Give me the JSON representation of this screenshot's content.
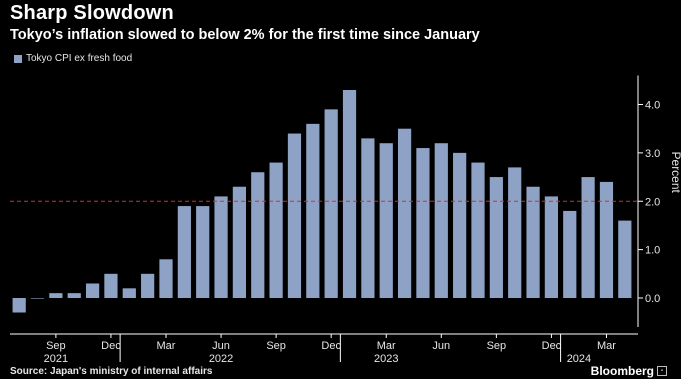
{
  "title": "Sharp Slowdown",
  "subtitle": "Tokyo’s inflation slowed to below 2% for the first time since January",
  "source": "Source: Japan's ministry of internal affairs",
  "brand": "Bloomberg",
  "colors": {
    "background": "#000000",
    "bar": "#8ea2c6",
    "reference_line": "#d0303a",
    "axis": "#ffffff",
    "tick_text": "#e6e6e6"
  },
  "chart_data": {
    "type": "bar",
    "title": "Sharp Slowdown",
    "subtitle": "Tokyo’s inflation slowed to below 2% for the first time since January",
    "ylabel": "Percent",
    "ylim": [
      -0.6,
      4.6
    ],
    "y_ticks": [
      0.0,
      1.0,
      2.0,
      3.0,
      4.0
    ],
    "y_tick_labels": [
      "0.0",
      "1.0",
      "2.0",
      "3.0",
      "4.0"
    ],
    "y_axis_position": "right",
    "legend_position": "top-left",
    "grid": false,
    "reference_line": {
      "value": 2.0,
      "style": "dashed"
    },
    "categories": [
      "Jul 2021",
      "Aug 2021",
      "Sep 2021",
      "Oct 2021",
      "Nov 2021",
      "Dec 2021",
      "Jan 2022",
      "Feb 2022",
      "Mar 2022",
      "Apr 2022",
      "May 2022",
      "Jun 2022",
      "Jul 2022",
      "Aug 2022",
      "Sep 2022",
      "Oct 2022",
      "Nov 2022",
      "Dec 2022",
      "Jan 2023",
      "Feb 2023",
      "Mar 2023",
      "Apr 2023",
      "May 2023",
      "Jun 2023",
      "Jul 2023",
      "Aug 2023",
      "Sep 2023",
      "Oct 2023",
      "Nov 2023",
      "Dec 2023",
      "Jan 2024",
      "Feb 2024",
      "Mar 2024",
      "Apr 2024"
    ],
    "series": [
      {
        "name": "Tokyo CPI ex fresh food",
        "values": [
          -0.3,
          0.0,
          0.1,
          0.1,
          0.3,
          0.5,
          0.2,
          0.5,
          0.8,
          1.9,
          1.9,
          2.1,
          2.3,
          2.6,
          2.8,
          3.4,
          3.6,
          3.9,
          4.3,
          3.3,
          3.2,
          3.5,
          3.1,
          3.2,
          3.0,
          2.8,
          2.5,
          2.7,
          2.3,
          2.1,
          1.8,
          2.5,
          2.4,
          1.6
        ]
      }
    ],
    "x_month_ticks": [
      {
        "index": 2,
        "label": "Sep"
      },
      {
        "index": 5,
        "label": "Dec"
      },
      {
        "index": 8,
        "label": "Mar"
      },
      {
        "index": 11,
        "label": "Jun"
      },
      {
        "index": 14,
        "label": "Sep"
      },
      {
        "index": 17,
        "label": "Dec"
      },
      {
        "index": 20,
        "label": "Mar"
      },
      {
        "index": 23,
        "label": "Jun"
      },
      {
        "index": 26,
        "label": "Sep"
      },
      {
        "index": 29,
        "label": "Dec"
      },
      {
        "index": 32,
        "label": "Mar"
      }
    ],
    "x_year_labels": [
      {
        "index": 2,
        "label": "2021"
      },
      {
        "index": 11,
        "label": "2022"
      },
      {
        "index": 20,
        "label": "2023"
      },
      {
        "index": 30.5,
        "label": "2024"
      }
    ],
    "x_year_separators": [
      5.5,
      17.5,
      29.5
    ]
  }
}
